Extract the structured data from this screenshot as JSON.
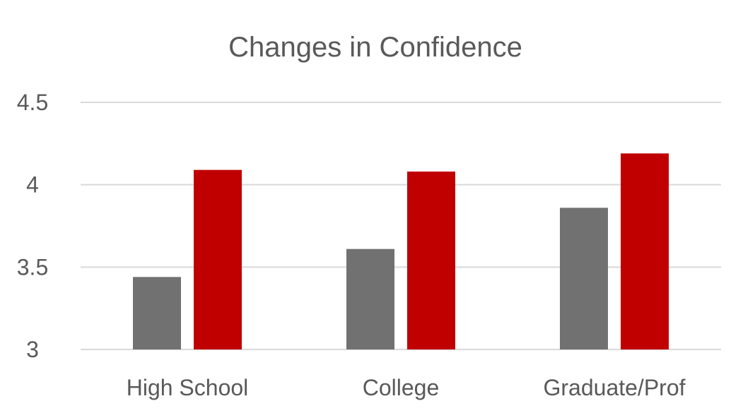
{
  "chart_data": {
    "type": "bar",
    "title": "Changes in Confidence",
    "xlabel": "",
    "ylabel": "",
    "categories": [
      "High School",
      "College",
      "Graduate/Prof"
    ],
    "series": [
      {
        "values": [
          3.44,
          3.61,
          3.86
        ],
        "color": "#717171"
      },
      {
        "values": [
          4.09,
          4.08,
          4.19
        ],
        "color": "#c00000"
      }
    ],
    "ylim": [
      3,
      4.5
    ],
    "yticks": [
      3,
      3.5,
      4,
      4.5
    ],
    "ytick_labels": [
      "3",
      "3.5",
      "4",
      "4.5"
    ],
    "grid": true,
    "legend": "none"
  }
}
